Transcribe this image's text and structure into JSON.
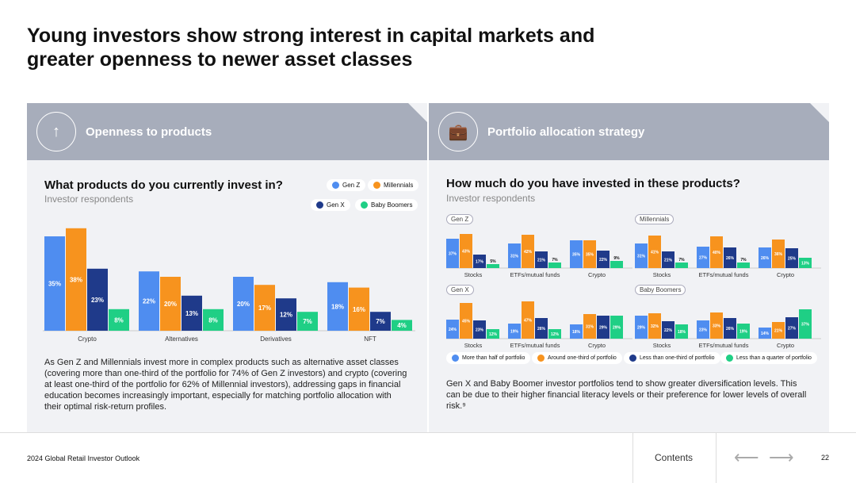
{
  "title": "Young investors show strong interest in capital markets and greater openness to newer asset classes",
  "left": {
    "header": "Openness to products",
    "question": "What products do you currently invest in?",
    "subtitle": "Investor respondents",
    "legend": [
      "Gen Z",
      "Millennials",
      "Gen X",
      "Baby Boomers"
    ],
    "paragraph": "As Gen Z and Millennials invest more in complex products such as alternative asset classes (covering more than one-third of the portfolio for 74% of Gen Z investors) and crypto (covering at least one-third of the portfolio for 62% of Millennial investors), addressing gaps in financial education becomes increasingly important, especially for matching portfolio allocation with their optimal risk-return profiles."
  },
  "right": {
    "header": "Portfolio allocation strategy",
    "question": "How much do you have invested in these products?",
    "subtitle": "Investor respondents",
    "legend": [
      "More than half of portfolio",
      "Around one-third of portfolio",
      "Less than one-third of portfolio",
      "Less than a quarter of portfolio"
    ],
    "paragraph": "Gen X and Baby Boomer investor portfolios tend to show greater diversification levels. This can be due to their higher financial literacy levels or their preference for lower levels of overall risk.⁹"
  },
  "colors": [
    "#4f8df0",
    "#f7931e",
    "#1f3a8a",
    "#1fcf85"
  ],
  "chart_data": [
    {
      "type": "bar",
      "title": "What products do you currently invest in?",
      "categories": [
        "Crypto",
        "Alternatives",
        "Derivatives",
        "NFT"
      ],
      "series": [
        {
          "name": "Gen Z",
          "values": [
            35,
            22,
            20,
            18
          ]
        },
        {
          "name": "Millennials",
          "values": [
            38,
            20,
            17,
            16
          ]
        },
        {
          "name": "Gen X",
          "values": [
            23,
            13,
            12,
            7
          ]
        },
        {
          "name": "Baby Boomers",
          "values": [
            8,
            8,
            7,
            4
          ]
        }
      ]
    },
    {
      "type": "bar",
      "title": "Gen Z",
      "categories": [
        "Stocks",
        "ETFs/mutual funds",
        "Crypto"
      ],
      "series": [
        [
          37,
          31,
          35
        ],
        [
          43,
          42,
          35
        ],
        [
          17,
          21,
          22
        ],
        [
          5,
          7,
          9
        ]
      ]
    },
    {
      "type": "bar",
      "title": "Millennials",
      "categories": [
        "Stocks",
        "ETFs/mutual funds",
        "Crypto"
      ],
      "series": [
        [
          31,
          27,
          26
        ],
        [
          41,
          40,
          36
        ],
        [
          21,
          26,
          25
        ],
        [
          7,
          7,
          13
        ]
      ]
    },
    {
      "type": "bar",
      "title": "Gen X",
      "categories": [
        "Stocks",
        "ETFs/mutual funds",
        "Crypto"
      ],
      "series": [
        [
          24,
          19,
          18
        ],
        [
          45,
          47,
          31
        ],
        [
          23,
          26,
          29
        ],
        [
          12,
          12,
          29
        ]
      ]
    },
    {
      "type": "bar",
      "title": "Baby Boomers",
      "categories": [
        "Stocks",
        "ETFs/mutual funds",
        "Crypto"
      ],
      "series": [
        [
          29,
          23,
          14
        ],
        [
          32,
          33,
          21
        ],
        [
          22,
          26,
          27
        ],
        [
          18,
          19,
          37
        ]
      ]
    }
  ],
  "footer": {
    "report": "2024 Global Retail Investor Outlook",
    "contents": "Contents",
    "page": "22"
  }
}
